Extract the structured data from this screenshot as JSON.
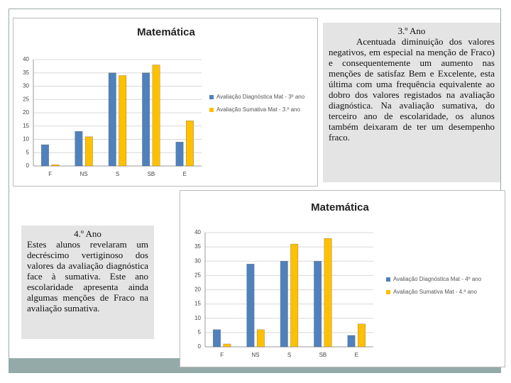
{
  "chart_data": [
    {
      "type": "bar",
      "title": "Matemática",
      "categories": [
        "F",
        "NS",
        "S",
        "SB",
        "E"
      ],
      "series": [
        {
          "name": "Avaliação Diagnóstica Mat - 3º ano",
          "color": "#4f81bd",
          "values": [
            8,
            13,
            35,
            35,
            9
          ]
        },
        {
          "name": "Avaliação Sumativa Mat - 3.º ano",
          "color": "#ffc000",
          "values": [
            0.5,
            11,
            34,
            38,
            17
          ]
        }
      ],
      "ylim": [
        0,
        40
      ],
      "yticks": [
        0,
        5,
        10,
        15,
        20,
        25,
        30,
        35,
        40
      ],
      "grid": true,
      "legend": "right"
    },
    {
      "type": "bar",
      "title": "Matemática",
      "categories": [
        "F",
        "NS",
        "S",
        "SB",
        "E"
      ],
      "series": [
        {
          "name": "Avaliação Diagnóstica Mat - 4º ano",
          "color": "#4f81bd",
          "values": [
            6,
            29,
            30,
            30,
            4
          ]
        },
        {
          "name": "Avaliação Sumativa Mat - 4.º ano",
          "color": "#ffc000",
          "values": [
            1,
            6,
            36,
            38,
            8
          ]
        }
      ],
      "ylim": [
        0,
        40
      ],
      "yticks": [
        0,
        5,
        10,
        15,
        20,
        25,
        30,
        35,
        40
      ],
      "grid": true,
      "legend": "right"
    }
  ],
  "text_boxes": [
    {
      "title": "3.º Ano",
      "body": "Acentuada diminuição dos valores negativos, em especial na menção de Fraco) e consequentemente um aumento nas menções de satisfaz Bem e Excelente, esta última com uma frequência equivalente ao dobro dos valores registados na avaliação diagnóstica. Na avaliação sumativa, do terceiro ano de escolaridade, os alunos também deixaram de ter um desempenho fraco."
    },
    {
      "title": "4.º Ano",
      "body": "Estes alunos revelaram um decréscimo vertiginoso dos valores da avaliação diagnóstica face à sumativa. Este ano escolaridade apresenta ainda algumas menções de Fraco na avaliação sumativa."
    }
  ]
}
